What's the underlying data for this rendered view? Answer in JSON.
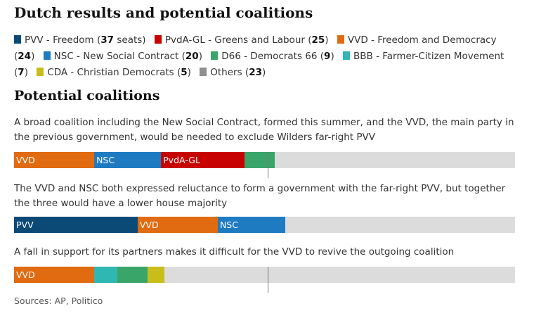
{
  "title": "Dutch results and potential coalitions",
  "subtitle": "Potential coalitions",
  "source": "Sources: AP, Politico",
  "parties": {
    "PVV": {
      "legend": "PVV - Freedom",
      "seats": "37",
      "suffix": " seats)",
      "color": "#0b4a77"
    },
    "PvdA-GL": {
      "legend": "PvdA-GL - Greens and Labour",
      "seats": "25",
      "suffix": ")",
      "color": "#c70000"
    },
    "VVD": {
      "legend": "VVD - Freedom and Democracy",
      "seats": "24",
      "suffix": ")",
      "color": "#e06b10"
    },
    "NSC": {
      "legend": "NSC - New Social Contract",
      "seats": "20",
      "suffix": ")",
      "color": "#1f7bc1"
    },
    "D66": {
      "legend": "D66 - Democrats 66",
      "seats": "9",
      "suffix": ")",
      "color": "#3aa568"
    },
    "BBB": {
      "legend": "BBB - Farmer-Citizen Movement",
      "seats": "7",
      "suffix": ")",
      "color": "#2fb8b3"
    },
    "CDA": {
      "legend": "CDA - Christian Democrats",
      "seats": "5",
      "suffix": ")",
      "color": "#c9bd1b"
    },
    "Others": {
      "legend": "Others",
      "seats": "23",
      "suffix": ")",
      "color": "#8f8f8f"
    }
  },
  "chart_data": {
    "type": "bar",
    "total_seats": 150,
    "majority": 76,
    "coalitions": [
      {
        "description": "A broad coalition including the New Social Contract, formed this summer, and the VVD, the main party in the previous government, would be needed to exclude Wilders far-right PVV",
        "segments": [
          {
            "party": "VVD",
            "value": 24,
            "label": "VVD"
          },
          {
            "party": "NSC",
            "value": 20,
            "label": "NSC"
          },
          {
            "party": "PvdA-GL",
            "value": 25,
            "label": "PvdA-GL"
          },
          {
            "party": "D66",
            "value": 9,
            "label": ""
          }
        ]
      },
      {
        "description": "The VVD and NSC both expressed reluctance to form a government with the far-right PVV, but together the three would have a lower house majority",
        "segments": [
          {
            "party": "PVV",
            "value": 37,
            "label": "PVV"
          },
          {
            "party": "VVD",
            "value": 24,
            "label": "VVD"
          },
          {
            "party": "NSC",
            "value": 20,
            "label": "NSC"
          }
        ]
      },
      {
        "description": "A fall in support for its partners makes it difficult for the VVD to revive the outgoing coalition",
        "segments": [
          {
            "party": "VVD",
            "value": 24,
            "label": "VVD"
          },
          {
            "party": "BBB",
            "value": 7,
            "label": ""
          },
          {
            "party": "D66",
            "value": 9,
            "label": ""
          },
          {
            "party": "CDA",
            "value": 5,
            "label": ""
          }
        ]
      }
    ]
  }
}
